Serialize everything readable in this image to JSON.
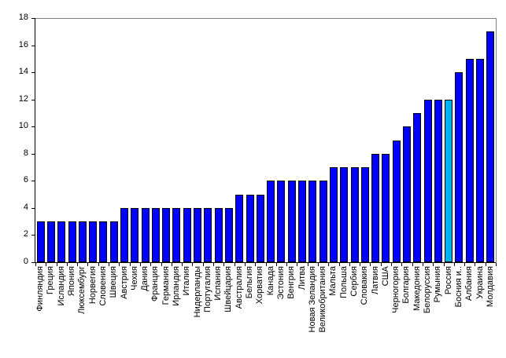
{
  "chart_data": {
    "type": "bar",
    "title": "",
    "xlabel": "",
    "ylabel": "",
    "categories": [
      "Финляндия",
      "Греция",
      "Исландия",
      "Япония",
      "Люксембург",
      "Норвегия",
      "Словения",
      "Швеция",
      "Австрия",
      "Чехия",
      "Дания",
      "Франция",
      "Германия",
      "Ирландия",
      "Италия",
      "Нидерланды",
      "Португалия",
      "Испания",
      "Швейцария",
      "Австралия",
      "Бельгия",
      "Хорватия",
      "Канада",
      "Эстония",
      "Венгрия",
      "Литва",
      "Новая Зеландия",
      "Великобритания",
      "Мальта",
      "Польша",
      "Сербия",
      "Словакия",
      "Латвия",
      "США",
      "Черногория",
      "Болгария",
      "Македония",
      "Белоруссия",
      "Румыния",
      "Россия",
      "Босния и..",
      "Албания",
      "Украина",
      "Молдавия"
    ],
    "values": [
      3,
      3,
      3,
      3,
      3,
      3,
      3,
      3,
      4,
      4,
      4,
      4,
      4,
      4,
      4,
      4,
      4,
      4,
      4,
      5,
      5,
      5,
      6,
      6,
      6,
      6,
      6,
      6,
      7,
      7,
      7,
      7,
      8,
      8,
      9,
      10,
      11,
      12,
      12,
      12,
      14,
      15,
      15,
      17
    ],
    "highlight_category": "Россия",
    "highlight_index": 39,
    "ylim": [
      0,
      18
    ],
    "ytick_step": 2,
    "ytick_labels": [
      "0",
      "2",
      "4",
      "6",
      "8",
      "10",
      "12",
      "14",
      "16",
      "18"
    ],
    "grid": false,
    "legend": false,
    "colors": {
      "bar_fill": "#0000FF",
      "highlight_fill": "#00B0F0",
      "bar_border": "#000000",
      "axis": "#000000",
      "plot_frame": "#808080",
      "background": "#FFFFFF",
      "text": "#000000"
    }
  }
}
